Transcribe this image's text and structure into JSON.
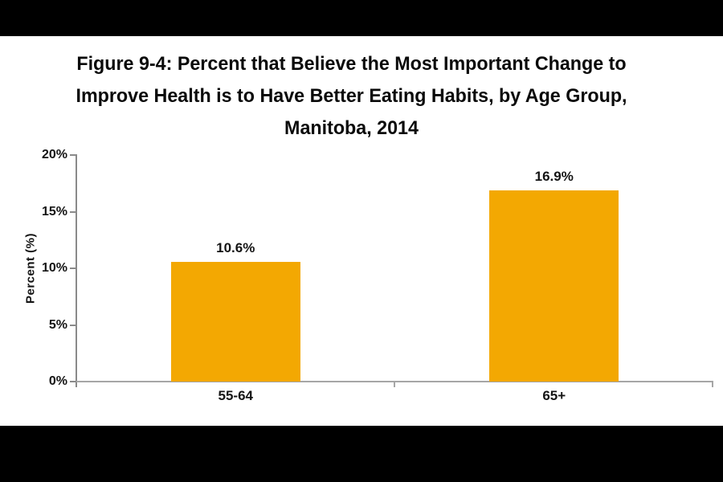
{
  "title": {
    "lines": [
      "Figure 9-4: Percent that Believe the Most Important Change to",
      "Improve Health is to Have Better Eating Habits, by Age Group,",
      "Manitoba, 2014"
    ]
  },
  "chart_data": {
    "type": "bar",
    "title": "Figure 9-4: Percent that Believe the Most Important Change to Improve Health is to Have Better Eating Habits, by Age Group, Manitoba, 2014",
    "categories": [
      "55-64",
      "65+"
    ],
    "values": [
      10.6,
      16.9
    ],
    "value_labels": [
      "10.6%",
      "16.9%"
    ],
    "xlabel": "",
    "ylabel": "Percent (%)",
    "ylim": [
      0,
      20
    ],
    "yticks": [
      {
        "label": "0%",
        "value": 0
      },
      {
        "label": "5%",
        "value": 5
      },
      {
        "label": "10%",
        "value": 10
      },
      {
        "label": "15%",
        "value": 15
      },
      {
        "label": "20%",
        "value": 20
      }
    ],
    "grid": false,
    "legend_position": "none",
    "bar_color": "#F3A802",
    "axis_color": "#8A8A8A",
    "baseline_color": "#A6A6A6"
  }
}
